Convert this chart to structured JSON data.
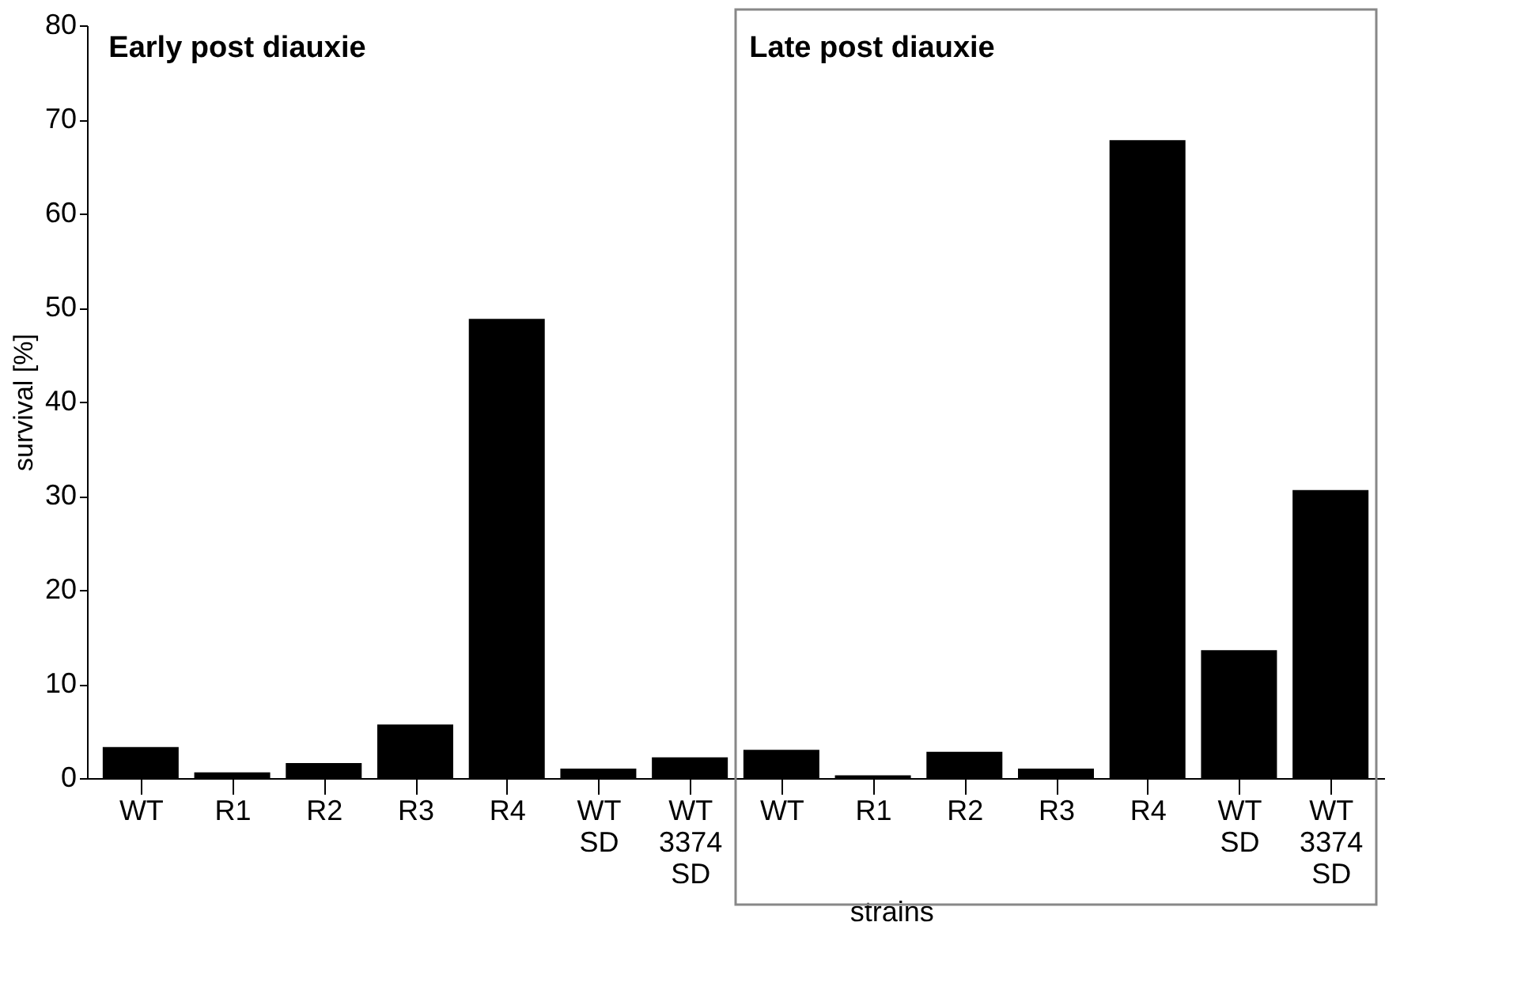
{
  "chart_data": {
    "type": "bar",
    "categories": [
      "WT",
      "R1",
      "R2",
      "R3",
      "R4",
      "WT SD",
      "WT 3374 SD",
      "WT",
      "R1",
      "R2",
      "R3",
      "R4",
      "WT SD",
      "WT 3374 SD"
    ],
    "values": [
      3.3,
      0.6,
      1.6,
      5.7,
      48.8,
      1.0,
      2.2,
      3.0,
      0.3,
      2.8,
      1.0,
      67.8,
      13.6,
      30.6
    ],
    "color": "#000000",
    "ylim": [
      0,
      80
    ],
    "yticks": [
      0,
      10,
      20,
      30,
      40,
      50,
      60,
      70,
      80
    ],
    "ylabel": "survival [%]",
    "xlabel": "strains",
    "annotations": [
      "Early post diauxie",
      "Late post diauxie"
    ],
    "grid": false
  }
}
